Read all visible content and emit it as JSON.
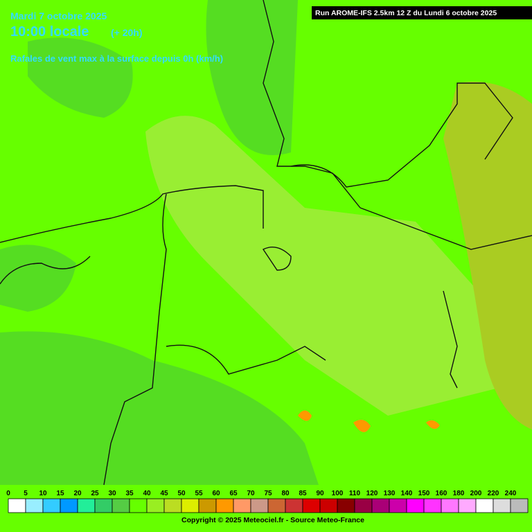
{
  "header": {
    "date": "Mardi 7 octobre 2025",
    "time": "10:00 locale",
    "offset": "(+ 20h)",
    "description": "Rafales de vent max à la surface depuis 0h (km/h)",
    "run": "Run AROME-IFS 2.5km 12 Z du Lundi 6 octobre 2025"
  },
  "legend": {
    "entries": [
      {
        "label": "0",
        "color": "#ffffff"
      },
      {
        "label": "5",
        "color": "#99eeff"
      },
      {
        "label": "10",
        "color": "#33ccff"
      },
      {
        "label": "15",
        "color": "#0099ff"
      },
      {
        "label": "20",
        "color": "#22ee99"
      },
      {
        "label": "25",
        "color": "#33cc66"
      },
      {
        "label": "30",
        "color": "#55cc44"
      },
      {
        "label": "35",
        "color": "#66ff00"
      },
      {
        "label": "40",
        "color": "#99ee22"
      },
      {
        "label": "45",
        "color": "#bbdd22"
      },
      {
        "label": "50",
        "color": "#ddee00"
      },
      {
        "label": "55",
        "color": "#cc9900"
      },
      {
        "label": "60",
        "color": "#ff9900"
      },
      {
        "label": "65",
        "color": "#ff9966"
      },
      {
        "label": "70",
        "color": "#cc9988"
      },
      {
        "label": "75",
        "color": "#cc6633"
      },
      {
        "label": "80",
        "color": "#cc3333"
      },
      {
        "label": "85",
        "color": "#dd0000"
      },
      {
        "label": "90",
        "color": "#cc0000"
      },
      {
        "label": "100",
        "color": "#880000"
      },
      {
        "label": "110",
        "color": "#990044"
      },
      {
        "label": "120",
        "color": "#aa0077"
      },
      {
        "label": "130",
        "color": "#cc00aa"
      },
      {
        "label": "140",
        "color": "#ff00ff"
      },
      {
        "label": "150",
        "color": "#ff33ff"
      },
      {
        "label": "160",
        "color": "#ff77ff"
      },
      {
        "label": "180",
        "color": "#ffaaff"
      },
      {
        "label": "200",
        "color": "#ffffff"
      },
      {
        "label": "220",
        "color": "#dddddd"
      },
      {
        "label": "240",
        "color": "#bbbbbb"
      }
    ]
  },
  "footer": {
    "copyright": "Copyright © 2025 Meteociel.fr - Source Meteo-France"
  }
}
